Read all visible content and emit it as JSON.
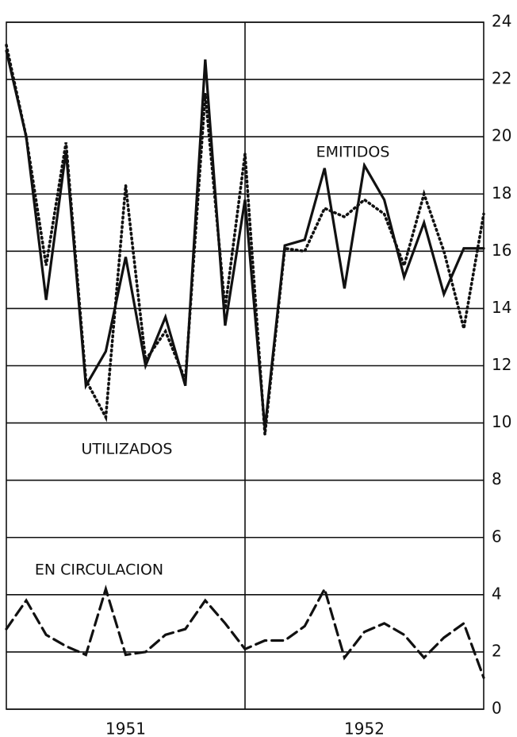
{
  "chart_data": {
    "type": "line",
    "x": [
      0,
      1,
      2,
      3,
      4,
      5,
      6,
      7,
      8,
      9,
      10,
      11,
      12,
      13,
      14,
      15,
      16,
      17,
      18,
      19,
      20,
      21,
      22,
      23,
      24
    ],
    "xlim": [
      0,
      24
    ],
    "xticks": [
      {
        "value": 6,
        "label": "1951"
      },
      {
        "value": 18,
        "label": "1952"
      }
    ],
    "x_divider": 12,
    "ylim": [
      0,
      24
    ],
    "yticks": [
      0,
      2,
      4,
      6,
      8,
      10,
      12,
      14,
      16,
      18,
      20,
      22,
      24
    ],
    "grid": true,
    "series": [
      {
        "name": "EMITIDOS",
        "color": "#111111",
        "style": "solid",
        "values": [
          23,
          20,
          14.3,
          19.5,
          11.3,
          12.5,
          15.8,
          12,
          13.7,
          11.3,
          22.7,
          13.4,
          17.8,
          9.8,
          16.2,
          16.4,
          18.9,
          14.7,
          19,
          17.8,
          15.1,
          17,
          14.5,
          16.1,
          16.1
        ]
      },
      {
        "name": "UTILIZADOS",
        "color": "#111111",
        "style": "dotted",
        "values": [
          23.2,
          20,
          15.5,
          19.8,
          11.5,
          10.2,
          18.3,
          12.2,
          13.2,
          11.5,
          21.5,
          14,
          19.4,
          9.6,
          16.1,
          16,
          17.5,
          17.2,
          17.8,
          17.3,
          15.5,
          18,
          16,
          13.3,
          17.3
        ]
      },
      {
        "name": "EN CIRCULACION",
        "color": "#111111",
        "style": "dashed",
        "values": [
          2.8,
          3.8,
          2.6,
          2.2,
          1.9,
          4.2,
          1.9,
          2,
          2.6,
          2.8,
          3.8,
          3,
          2.1,
          2.4,
          2.4,
          2.9,
          4.2,
          1.8,
          2.7,
          3,
          2.6,
          1.8,
          2.5,
          3,
          1.1
        ]
      }
    ]
  }
}
